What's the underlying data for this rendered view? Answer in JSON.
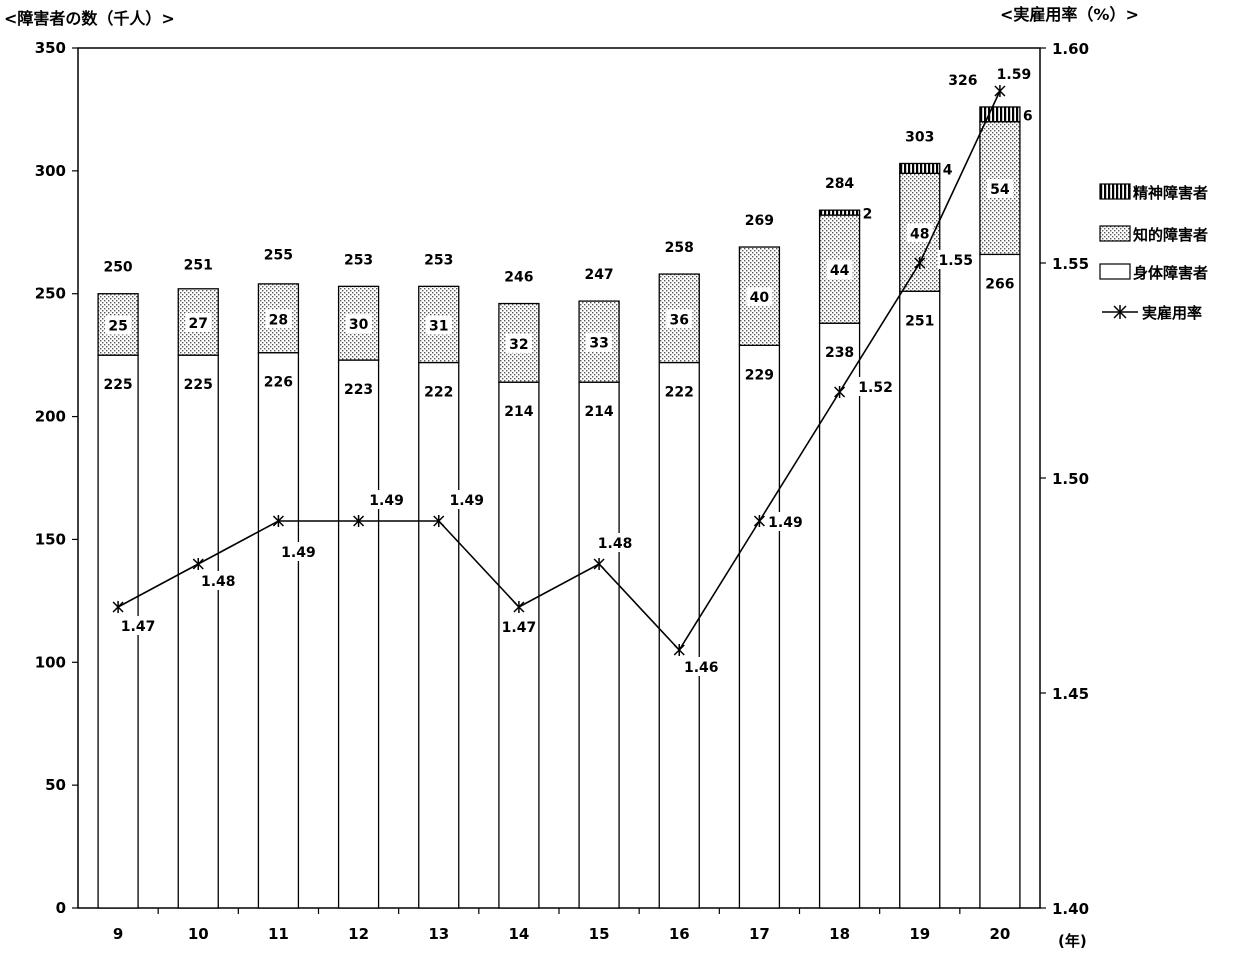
{
  "chart_data": {
    "type": "bar",
    "stacked": true,
    "left_axis_title": "<障害者の数（千人）>",
    "right_axis_title": "<実雇用率（%）>",
    "x_unit_label": "(年)",
    "categories": [
      "9",
      "10",
      "11",
      "12",
      "13",
      "14",
      "15",
      "16",
      "17",
      "18",
      "19",
      "20"
    ],
    "y_left": {
      "lim": [
        0,
        350
      ],
      "ticks": [
        "0",
        "50",
        "100",
        "150",
        "200",
        "250",
        "300",
        "350"
      ]
    },
    "y_right": {
      "lim": [
        1.4,
        1.6
      ],
      "ticks": [
        "1.40",
        "1.45",
        "1.50",
        "1.55",
        "1.60"
      ]
    },
    "series": [
      {
        "name": "身体障害者",
        "values": [
          225,
          225,
          226,
          223,
          222,
          214,
          214,
          222,
          229,
          238,
          251,
          266
        ]
      },
      {
        "name": "知的障害者",
        "values": [
          25,
          27,
          28,
          30,
          31,
          32,
          33,
          36,
          40,
          44,
          48,
          54
        ]
      },
      {
        "name": "精神障害者",
        "values": [
          null,
          null,
          null,
          null,
          null,
          null,
          null,
          null,
          null,
          2,
          4,
          6
        ]
      }
    ],
    "totals": [
      250,
      251,
      255,
      253,
      253,
      246,
      247,
      258,
      269,
      284,
      303,
      326
    ],
    "line": {
      "name": "実雇用率",
      "axis": "right",
      "values": [
        1.47,
        1.48,
        1.49,
        1.49,
        1.49,
        1.47,
        1.48,
        1.46,
        1.49,
        1.52,
        1.55,
        1.59
      ],
      "labels": [
        "1.47",
        "1.48",
        "1.49",
        "1.49",
        "1.49",
        "1.47",
        "1.48",
        "1.46",
        "1.49",
        "1.52",
        "1.55",
        "1.59"
      ]
    },
    "legend": {
      "placement": "right",
      "items": [
        "精神障害者",
        "知的障害者",
        "身体障害者",
        "実雇用率"
      ]
    },
    "colors": {
      "frame": "#000000",
      "bar_fill": "#ffffff",
      "dot": "#555555"
    }
  }
}
